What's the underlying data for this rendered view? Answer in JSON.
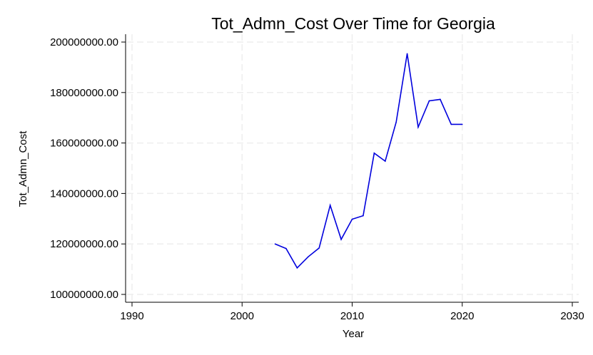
{
  "chart_data": {
    "type": "line",
    "title": "Tot_Admn_Cost Over Time for Georgia",
    "xlabel": "Year",
    "ylabel": "Tot_Admn_Cost",
    "xlim": [
      1990,
      2030
    ],
    "ylim": [
      100000000,
      200000000
    ],
    "x_ticks": [
      1990,
      2000,
      2010,
      2020,
      2030
    ],
    "y_ticks": [
      100000000,
      120000000,
      140000000,
      160000000,
      180000000,
      200000000
    ],
    "y_tick_labels": [
      "100000000.00",
      "120000000.00",
      "140000000.00",
      "160000000.00",
      "180000000.00",
      "200000000.00"
    ],
    "grid": true,
    "series": [
      {
        "color": "#0000dd",
        "x": [
          2003,
          2004,
          2005,
          2006,
          2007,
          2008,
          2009,
          2010,
          2011,
          2012,
          2013,
          2014,
          2015,
          2016,
          2017,
          2018,
          2019,
          2020
        ],
        "values": [
          120000000,
          118200000,
          110500000,
          114900000,
          118400000,
          135300000,
          121800000,
          129800000,
          131200000,
          156000000,
          152800000,
          168300000,
          195400000,
          166300000,
          176700000,
          177300000,
          167400000,
          167400000
        ]
      }
    ]
  }
}
